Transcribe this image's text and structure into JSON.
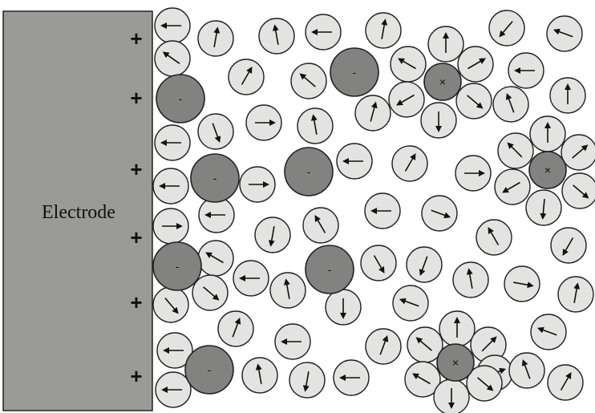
{
  "electrode": {
    "label": "Electrode",
    "surface_charges": [
      "+",
      "+",
      "+",
      "+",
      "+",
      "+"
    ],
    "color": "#9a9a97"
  },
  "anion_sign": "-",
  "cation_sign": "×",
  "colors": {
    "solvent": "#e3e3e1",
    "ion": "#828280",
    "outline": "#222222"
  }
}
